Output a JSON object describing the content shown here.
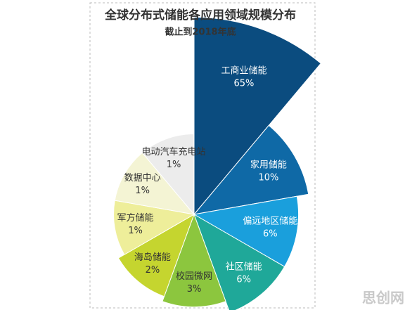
{
  "chart_data": {
    "type": "rose",
    "title": "全球分布式储能各应用领域规模分布",
    "subtitle": "截止到2018年底",
    "categories": [
      "工商业储能",
      "家用储能",
      "偏远地区储能",
      "社区储能",
      "校园微网",
      "海岛储能",
      "军方储能",
      "数据中心",
      "电动汽车充电站"
    ],
    "values": [
      65,
      10,
      6,
      6,
      3,
      2,
      1,
      1,
      1
    ],
    "value_labels": [
      "65%",
      "10%",
      "6%",
      "6%",
      "3%",
      "2%",
      "1%",
      "1%",
      "1%"
    ],
    "colors": [
      "#0b4c7f",
      "#0f69a6",
      "#1a9fdc",
      "#1fa899",
      "#8cc63e",
      "#c5d52f",
      "#eeee9a",
      "#f4f4d4",
      "#ececec"
    ]
  },
  "watermark": "思创网"
}
